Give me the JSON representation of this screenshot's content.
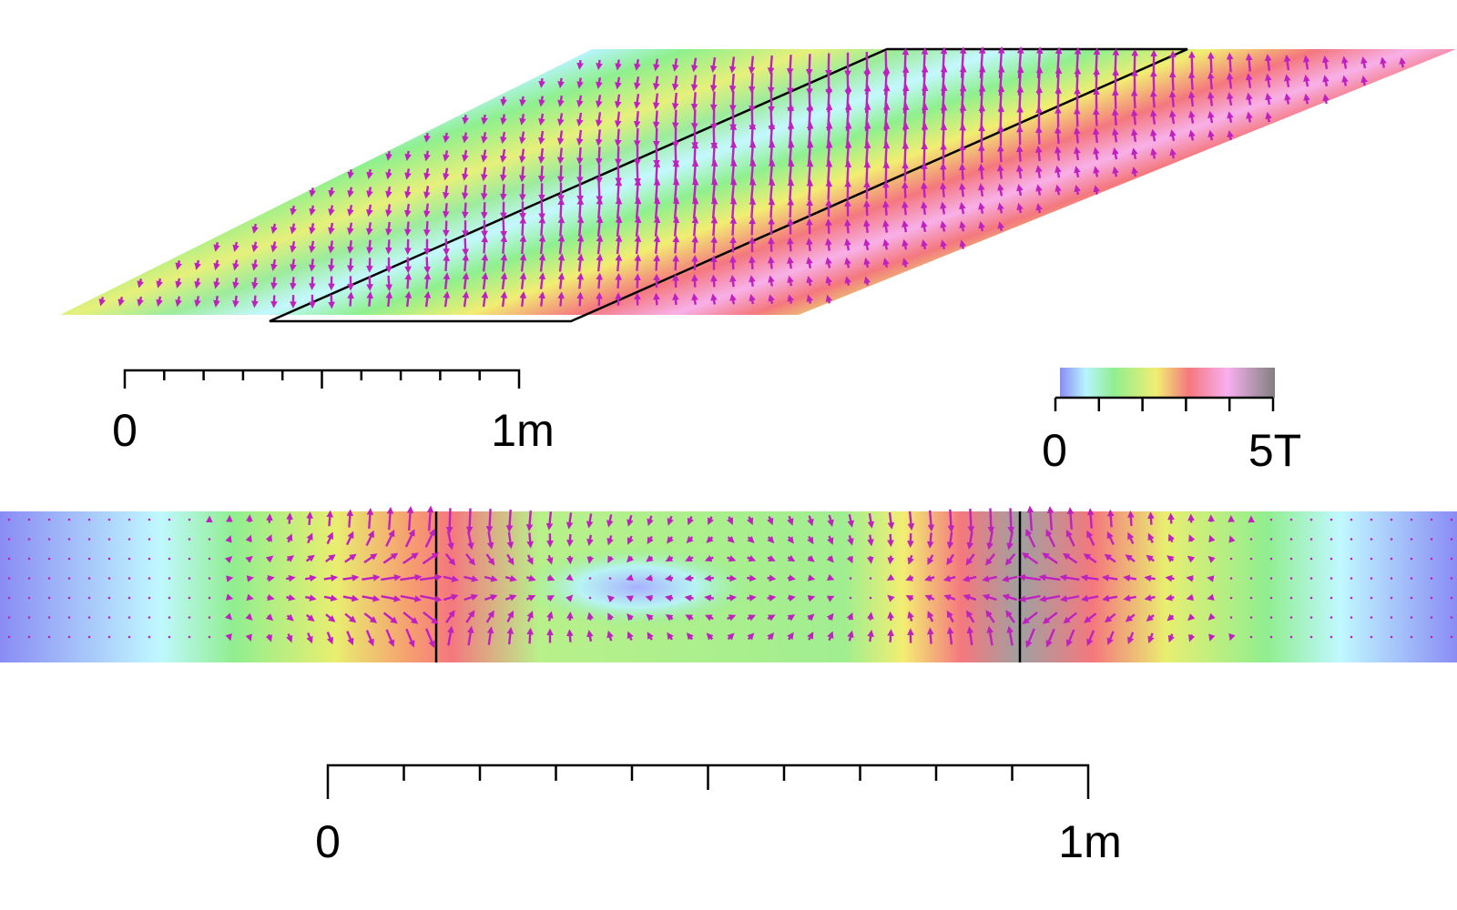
{
  "scale_top": {
    "start": "0",
    "end": "1m"
  },
  "colorbar": {
    "min": "0",
    "max": "5T"
  },
  "scale_bottom": {
    "start": "0",
    "end": "1m"
  }
}
